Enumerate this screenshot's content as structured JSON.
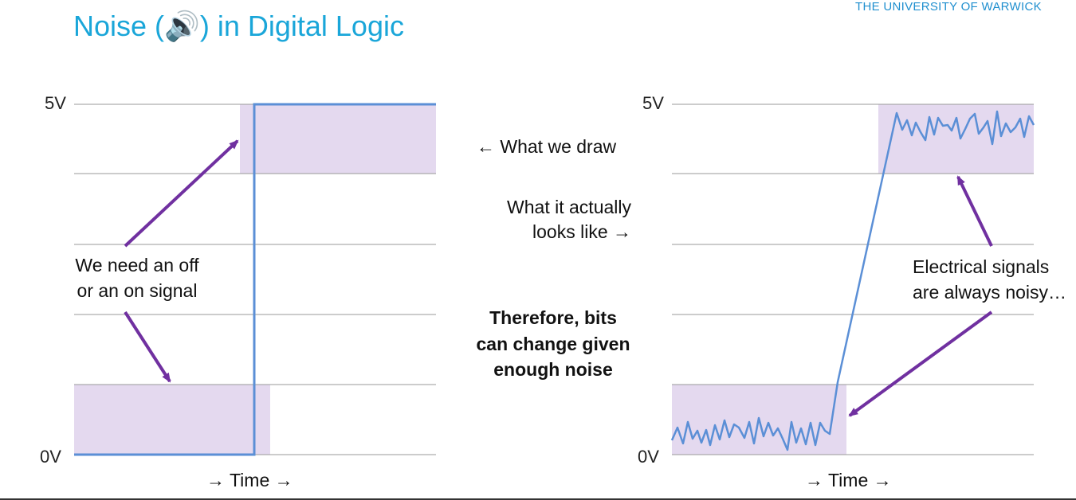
{
  "header": {
    "title": "Noise (🔊) in Digital Logic",
    "institution": "THE UNIVERSITY OF WARWICK"
  },
  "left_diagram": {
    "y_max_label": "5V",
    "y_min_label": "0V",
    "x_label": "→ Time →",
    "annotation_line1": "We need an off",
    "annotation_line2": "or an on signal"
  },
  "middle": {
    "what_we_draw": "← What we draw",
    "actual_line1": "What it actually",
    "actual_line2": "looks like →",
    "conclusion_line1": "Therefore, bits",
    "conclusion_line2": "can change given",
    "conclusion_line3": "enough noise"
  },
  "right_diagram": {
    "y_max_label": "5V",
    "y_min_label": "0V",
    "x_label": "→ Time →",
    "annotation_line1": "Electrical signals",
    "annotation_line2": "are always noisy…"
  },
  "colors": {
    "band_fill": "#e4d9ef",
    "signal": "#5b8fd6",
    "arrow": "#7030a0",
    "grid": "#9a9a9a",
    "title": "#1aa6d9"
  }
}
